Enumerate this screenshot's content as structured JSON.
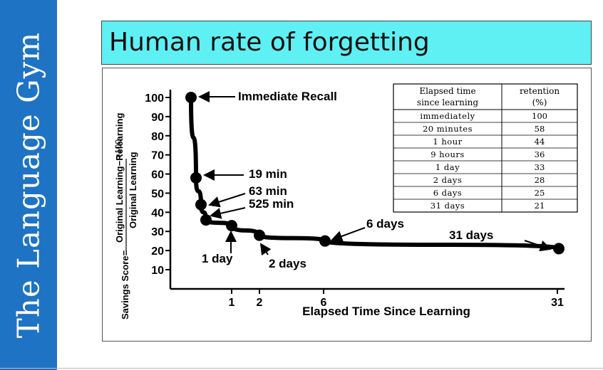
{
  "sidebar": {
    "text": "The Language Gym"
  },
  "slide": {
    "title": "Human rate of forgetting"
  },
  "colors": {
    "sidebar": "#1f73c4",
    "title_bg": "#5ff0f4",
    "ink": "#000000"
  },
  "chart_data": {
    "type": "line",
    "title": "",
    "xlabel": "Elapsed Time Since Learning",
    "ylabel_prefix": "Savings Score=",
    "ylabel_numerator": "Original Learning−Relearning",
    "ylabel_denominator": "Original Learning",
    "ylabel_suffix": "×100",
    "ylim": [
      0,
      100
    ],
    "yticks": [
      10,
      20,
      30,
      40,
      50,
      60,
      70,
      80,
      90,
      100
    ],
    "xticks": [
      "1",
      "2",
      "6",
      "31"
    ],
    "grid": false,
    "points": [
      {
        "label": "immediately",
        "y": 100
      },
      {
        "label": "20 minutes",
        "y": 58
      },
      {
        "label": "1 hour",
        "y": 44
      },
      {
        "label": "9 hours",
        "y": 36
      },
      {
        "label": "1 day",
        "y": 33
      },
      {
        "label": "2 days",
        "y": 28
      },
      {
        "label": "6 days",
        "y": 25
      },
      {
        "label": "31 days",
        "y": 21
      }
    ],
    "annotations": [
      "Immediate Recall",
      "19 min",
      "63 min",
      "525 min",
      "1 day",
      "2 days",
      "6 days",
      "31 days"
    ],
    "table": {
      "headers": [
        [
          "Elapsed time",
          "since learning"
        ],
        [
          "retention",
          "(%)"
        ]
      ],
      "rows": [
        [
          "immediately",
          "100"
        ],
        [
          "20 minutes",
          "58"
        ],
        [
          "1 hour",
          "44"
        ],
        [
          "9 hours",
          "36"
        ],
        [
          "1 day",
          "33"
        ],
        [
          "2 days",
          "28"
        ],
        [
          "6 days",
          "25"
        ],
        [
          "31 days",
          "21"
        ]
      ]
    }
  }
}
